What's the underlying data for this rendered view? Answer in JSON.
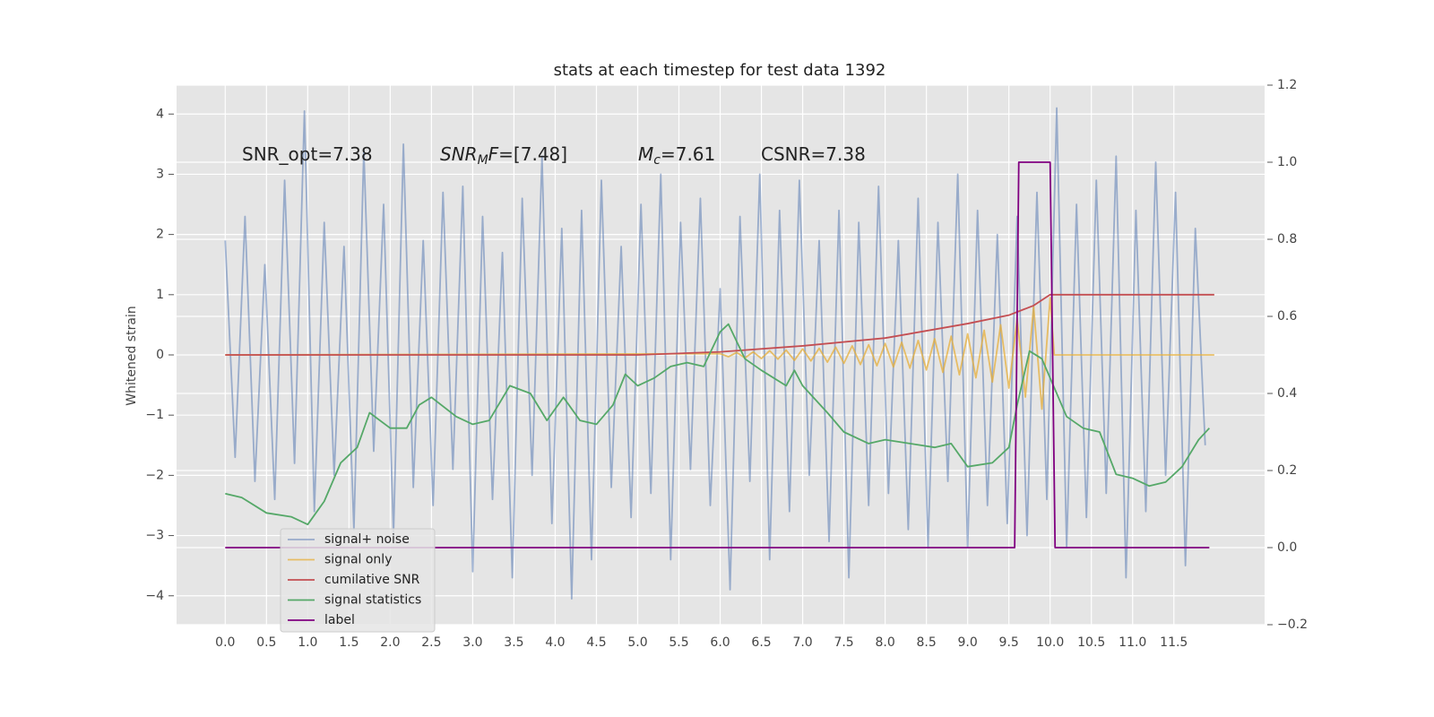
{
  "chart_data": {
    "type": "line",
    "title": "stats at each timestep for test data 1392",
    "y_label": "Whitened strain",
    "xlim": [
      -0.59,
      12.6
    ],
    "ylim": [
      -4.48,
      4.48
    ],
    "y2lim": [
      -0.2,
      1.2
    ],
    "grid": true,
    "legend": "lower left",
    "xticks": [
      {
        "value": 0,
        "label": "0.0"
      },
      {
        "value": 0.5,
        "label": "0.5"
      },
      {
        "value": 1,
        "label": "1.0"
      },
      {
        "value": 1.5,
        "label": "1.5"
      },
      {
        "value": 2,
        "label": "2.0"
      },
      {
        "value": 2.5,
        "label": "2.5"
      },
      {
        "value": 3,
        "label": "3.0"
      },
      {
        "value": 3.5,
        "label": "3.5"
      },
      {
        "value": 4,
        "label": "4.0"
      },
      {
        "value": 4.5,
        "label": "4.5"
      },
      {
        "value": 5,
        "label": "5.0"
      },
      {
        "value": 5.5,
        "label": "5.5"
      },
      {
        "value": 6,
        "label": "6.0"
      },
      {
        "value": 6.5,
        "label": "6.5"
      },
      {
        "value": 7,
        "label": "7.0"
      },
      {
        "value": 7.5,
        "label": "7.5"
      },
      {
        "value": 8,
        "label": "8.0"
      },
      {
        "value": 8.5,
        "label": "8.5"
      },
      {
        "value": 9,
        "label": "9.0"
      },
      {
        "value": 9.5,
        "label": "9.5"
      },
      {
        "value": 10,
        "label": "10.0"
      },
      {
        "value": 10.5,
        "label": "10.5"
      },
      {
        "value": 11,
        "label": "11.0"
      },
      {
        "value": 11.5,
        "label": "11.5"
      }
    ],
    "yticks": [
      {
        "value": -4,
        "label": "−4"
      },
      {
        "value": -3,
        "label": "−3"
      },
      {
        "value": -2,
        "label": "−2"
      },
      {
        "value": -1,
        "label": "−1"
      },
      0,
      1,
      2,
      3,
      4
    ],
    "y2ticks": [
      {
        "value": -0.2,
        "label": "−0.2"
      },
      {
        "value": 0,
        "label": "0.0"
      },
      {
        "value": 0.2,
        "label": "0.2"
      },
      {
        "value": 0.4,
        "label": "0.4"
      },
      {
        "value": 0.6,
        "label": "0.6"
      },
      {
        "value": 0.8,
        "label": "0.8"
      },
      {
        "value": 1,
        "label": "1.0"
      },
      {
        "value": 1.2,
        "label": "1.2"
      }
    ],
    "annotations": [
      {
        "text": "SNR_opt=7.38"
      },
      {
        "italic": "SNR",
        "sub": "M",
        "italic2": "F",
        "text": "=[7.48]"
      },
      {
        "italic": "M",
        "sub": "c",
        "text": "=7.61"
      },
      {
        "text": "CSNR=7.38"
      }
    ],
    "series": [
      {
        "name": "signal+ noise",
        "color": "#4c72b0",
        "alpha": 0.5,
        "x": [
          0,
          0.12,
          0.24,
          0.36,
          0.48,
          0.6,
          0.72,
          0.84,
          0.96,
          1.08,
          1.2,
          1.32,
          1.44,
          1.56,
          1.68,
          1.8,
          1.92,
          2.04,
          2.16,
          2.28,
          2.4,
          2.52,
          2.64,
          2.76,
          2.88,
          3,
          3.12,
          3.24,
          3.36,
          3.48,
          3.6,
          3.72,
          3.84,
          3.96,
          4.08,
          4.2,
          4.32,
          4.44,
          4.56,
          4.68,
          4.8,
          4.92,
          5.04,
          5.16,
          5.28,
          5.4,
          5.52,
          5.64,
          5.76,
          5.88,
          6,
          6.12,
          6.24,
          6.36,
          6.48,
          6.6,
          6.72,
          6.84,
          6.96,
          7.08,
          7.2,
          7.32,
          7.44,
          7.56,
          7.68,
          7.8,
          7.92,
          8.04,
          8.16,
          8.28,
          8.4,
          8.52,
          8.64,
          8.76,
          8.88,
          9,
          9.12,
          9.24,
          9.36,
          9.48,
          9.6,
          9.72,
          9.84,
          9.96,
          10.08,
          10.2,
          10.32,
          10.44,
          10.56,
          10.68,
          10.8,
          10.92,
          11.04,
          11.16,
          11.28,
          11.4,
          11.52,
          11.64,
          11.76,
          11.88
        ],
        "values": [
          1.9,
          -1.7,
          2.3,
          -2.1,
          1.5,
          -2.4,
          2.9,
          -1.8,
          4.05,
          -2.6,
          2.2,
          -2.0,
          1.8,
          -2.9,
          3.4,
          -1.6,
          2.5,
          -3.0,
          3.5,
          -2.2,
          1.9,
          -2.5,
          2.7,
          -1.9,
          2.8,
          -3.6,
          2.3,
          -2.4,
          1.7,
          -3.7,
          2.6,
          -2.0,
          3.3,
          -2.8,
          2.1,
          -4.05,
          2.4,
          -3.4,
          2.9,
          -2.2,
          1.8,
          -2.7,
          2.5,
          -2.3,
          3.0,
          -3.4,
          2.2,
          -1.9,
          2.6,
          -2.5,
          1.1,
          -3.9,
          2.3,
          -2.1,
          3.0,
          -3.4,
          2.4,
          -2.6,
          2.9,
          -2.0,
          1.9,
          -3.1,
          2.4,
          -3.7,
          2.2,
          -2.5,
          2.8,
          -2.3,
          1.9,
          -2.9,
          2.6,
          -3.2,
          2.2,
          -2.1,
          3.0,
          -3.2,
          2.4,
          -2.5,
          2.0,
          -2.8,
          2.3,
          -3.0,
          2.7,
          -2.4,
          4.1,
          -3.2,
          2.5,
          -2.7,
          2.9,
          -2.3,
          3.3,
          -3.7,
          2.4,
          -2.6,
          3.2,
          -2.0,
          2.7,
          -3.5,
          2.1,
          -1.5
        ]
      },
      {
        "name": "signal only",
        "color": "#e5ae38",
        "alpha": 0.75,
        "x": [
          0,
          6,
          6.1,
          6.2,
          6.3,
          6.4,
          6.5,
          6.6,
          6.7,
          6.8,
          6.9,
          7,
          7.1,
          7.2,
          7.3,
          7.4,
          7.5,
          7.6,
          7.7,
          7.8,
          7.9,
          8,
          8.1,
          8.2,
          8.3,
          8.4,
          8.5,
          8.6,
          8.7,
          8.8,
          8.9,
          9,
          9.1,
          9.2,
          9.3,
          9.4,
          9.5,
          9.6,
          9.7,
          9.8,
          9.9,
          10,
          10.05,
          11.99
        ],
        "values": [
          0,
          0.02,
          -0.03,
          0.04,
          -0.05,
          0.05,
          -0.06,
          0.07,
          -0.07,
          0.08,
          -0.09,
          0.1,
          -0.1,
          0.11,
          -0.12,
          0.13,
          -0.14,
          0.15,
          -0.16,
          0.17,
          -0.18,
          0.19,
          -0.2,
          0.21,
          -0.22,
          0.24,
          -0.25,
          0.27,
          -0.29,
          0.31,
          -0.33,
          0.35,
          -0.38,
          0.41,
          -0.45,
          0.5,
          -0.55,
          0.6,
          -0.7,
          0.8,
          -0.9,
          0.95,
          0,
          0
        ]
      },
      {
        "name": "cumilative SNR",
        "color": "#c44e52",
        "alpha": 1,
        "x": [
          0,
          5,
          6,
          7,
          8,
          9,
          9.5,
          9.8,
          10,
          11.99
        ],
        "values": [
          0,
          0,
          0.05,
          0.15,
          0.28,
          0.52,
          0.66,
          0.82,
          1,
          1
        ]
      },
      {
        "name": "signal statistics",
        "color": "#55a868",
        "alpha": 1,
        "axis": "y2",
        "x": [
          0,
          0.2,
          0.5,
          0.8,
          1,
          1.2,
          1.4,
          1.6,
          1.75,
          2,
          2.2,
          2.35,
          2.5,
          2.8,
          3,
          3.2,
          3.45,
          3.7,
          3.9,
          4.1,
          4.3,
          4.5,
          4.7,
          4.85,
          5,
          5.2,
          5.4,
          5.6,
          5.8,
          6,
          6.1,
          6.3,
          6.5,
          6.8,
          6.9,
          7,
          7.3,
          7.5,
          7.8,
          8,
          8.3,
          8.6,
          8.8,
          9,
          9.3,
          9.5,
          9.6,
          9.75,
          9.9,
          10,
          10.2,
          10.4,
          10.6,
          10.8,
          11,
          11.2,
          11.4,
          11.6,
          11.8,
          11.93
        ],
        "values": [
          0.14,
          0.13,
          0.09,
          0.08,
          0.06,
          0.12,
          0.22,
          0.26,
          0.35,
          0.31,
          0.31,
          0.37,
          0.39,
          0.34,
          0.32,
          0.33,
          0.42,
          0.4,
          0.33,
          0.39,
          0.33,
          0.32,
          0.37,
          0.45,
          0.42,
          0.44,
          0.47,
          0.48,
          0.47,
          0.56,
          0.58,
          0.49,
          0.46,
          0.42,
          0.46,
          0.42,
          0.35,
          0.3,
          0.27,
          0.28,
          0.27,
          0.26,
          0.27,
          0.21,
          0.22,
          0.26,
          0.37,
          0.51,
          0.49,
          0.44,
          0.34,
          0.31,
          0.3,
          0.19,
          0.18,
          0.16,
          0.17,
          0.21,
          0.28,
          0.31
        ]
      },
      {
        "name": "label",
        "color": "#800080",
        "alpha": 1,
        "axis": "y2",
        "x": [
          0,
          9.57,
          9.62,
          10,
          10.06,
          11.93
        ],
        "values": [
          0,
          0,
          1,
          1,
          0,
          0
        ]
      }
    ]
  }
}
